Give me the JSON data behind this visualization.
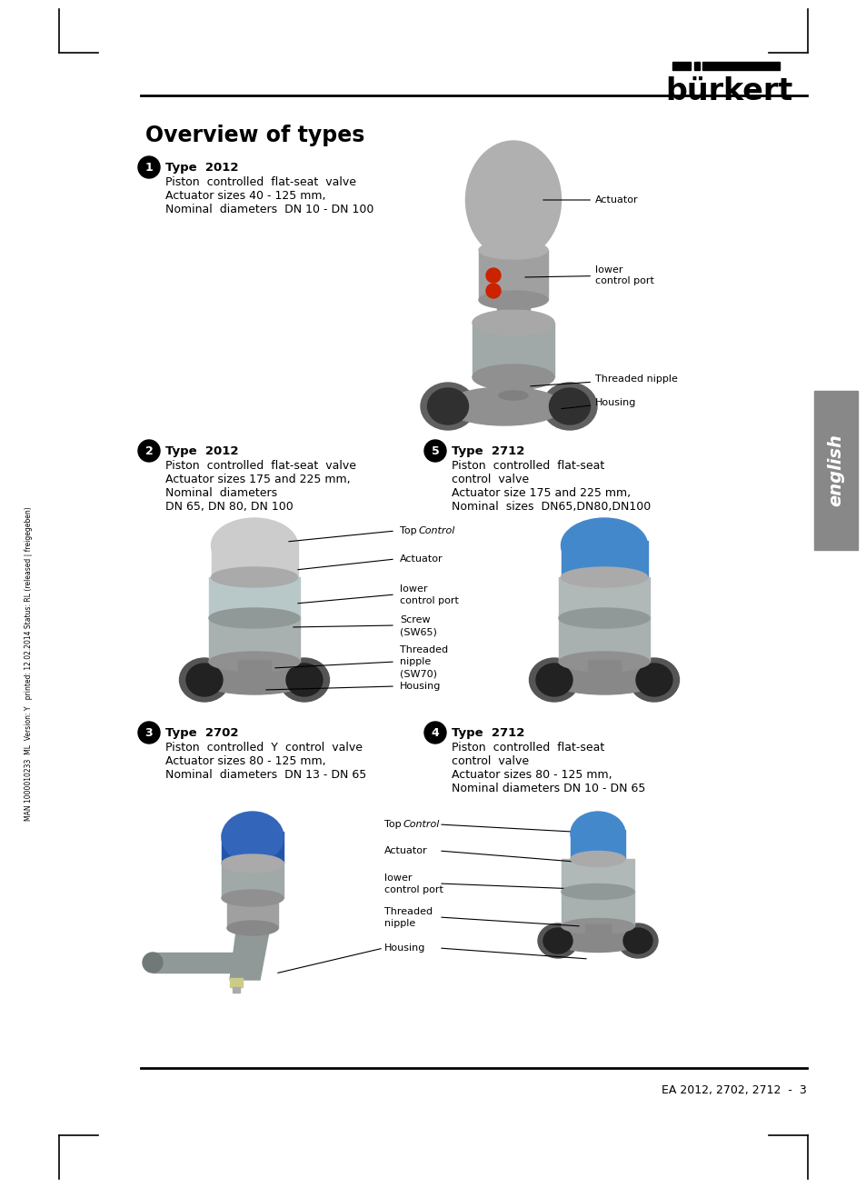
{
  "bg_color": "#ffffff",
  "title": "Overview of types",
  "footer_text": "EA 2012, 2702, 2712  -  3",
  "sidebar_text": "MAN 1000010233  ML  Version: Y   printed: 12.02.2014 Status: RL (released | freigegeben)",
  "type1_title": "Type  2012",
  "type1_lines": [
    "Piston  controlled  flat-seat  valve",
    "Actuator sizes 40 - 125 mm,",
    "Nominal  diameters  DN 10 - DN 100"
  ],
  "type2_title": "Type  2012",
  "type2_lines": [
    "Piston  controlled  flat-seat  valve",
    "Actuator sizes 175 and 225 mm,",
    "Nominal  diameters",
    "DN 65, DN 80, DN 100"
  ],
  "type3_title": "Type  2702",
  "type3_lines": [
    "Piston  controlled  Y  control  valve",
    "Actuator sizes 80 - 125 mm,",
    "Nominal  diameters  DN 13 - DN 65"
  ],
  "type4_title": "Type  2712",
  "type4_lines": [
    "Piston  controlled  flat-seat",
    "control  valve",
    "Actuator sizes 80 - 125 mm,",
    "Nominal diameters DN 10 - DN 65"
  ],
  "type5_title": "Type  2712",
  "type5_lines": [
    "Piston  controlled  flat-seat",
    "control  valve",
    "Actuator size 175 and 225 mm,",
    "Nominal  sizes  DN65,DN80,DN100"
  ]
}
